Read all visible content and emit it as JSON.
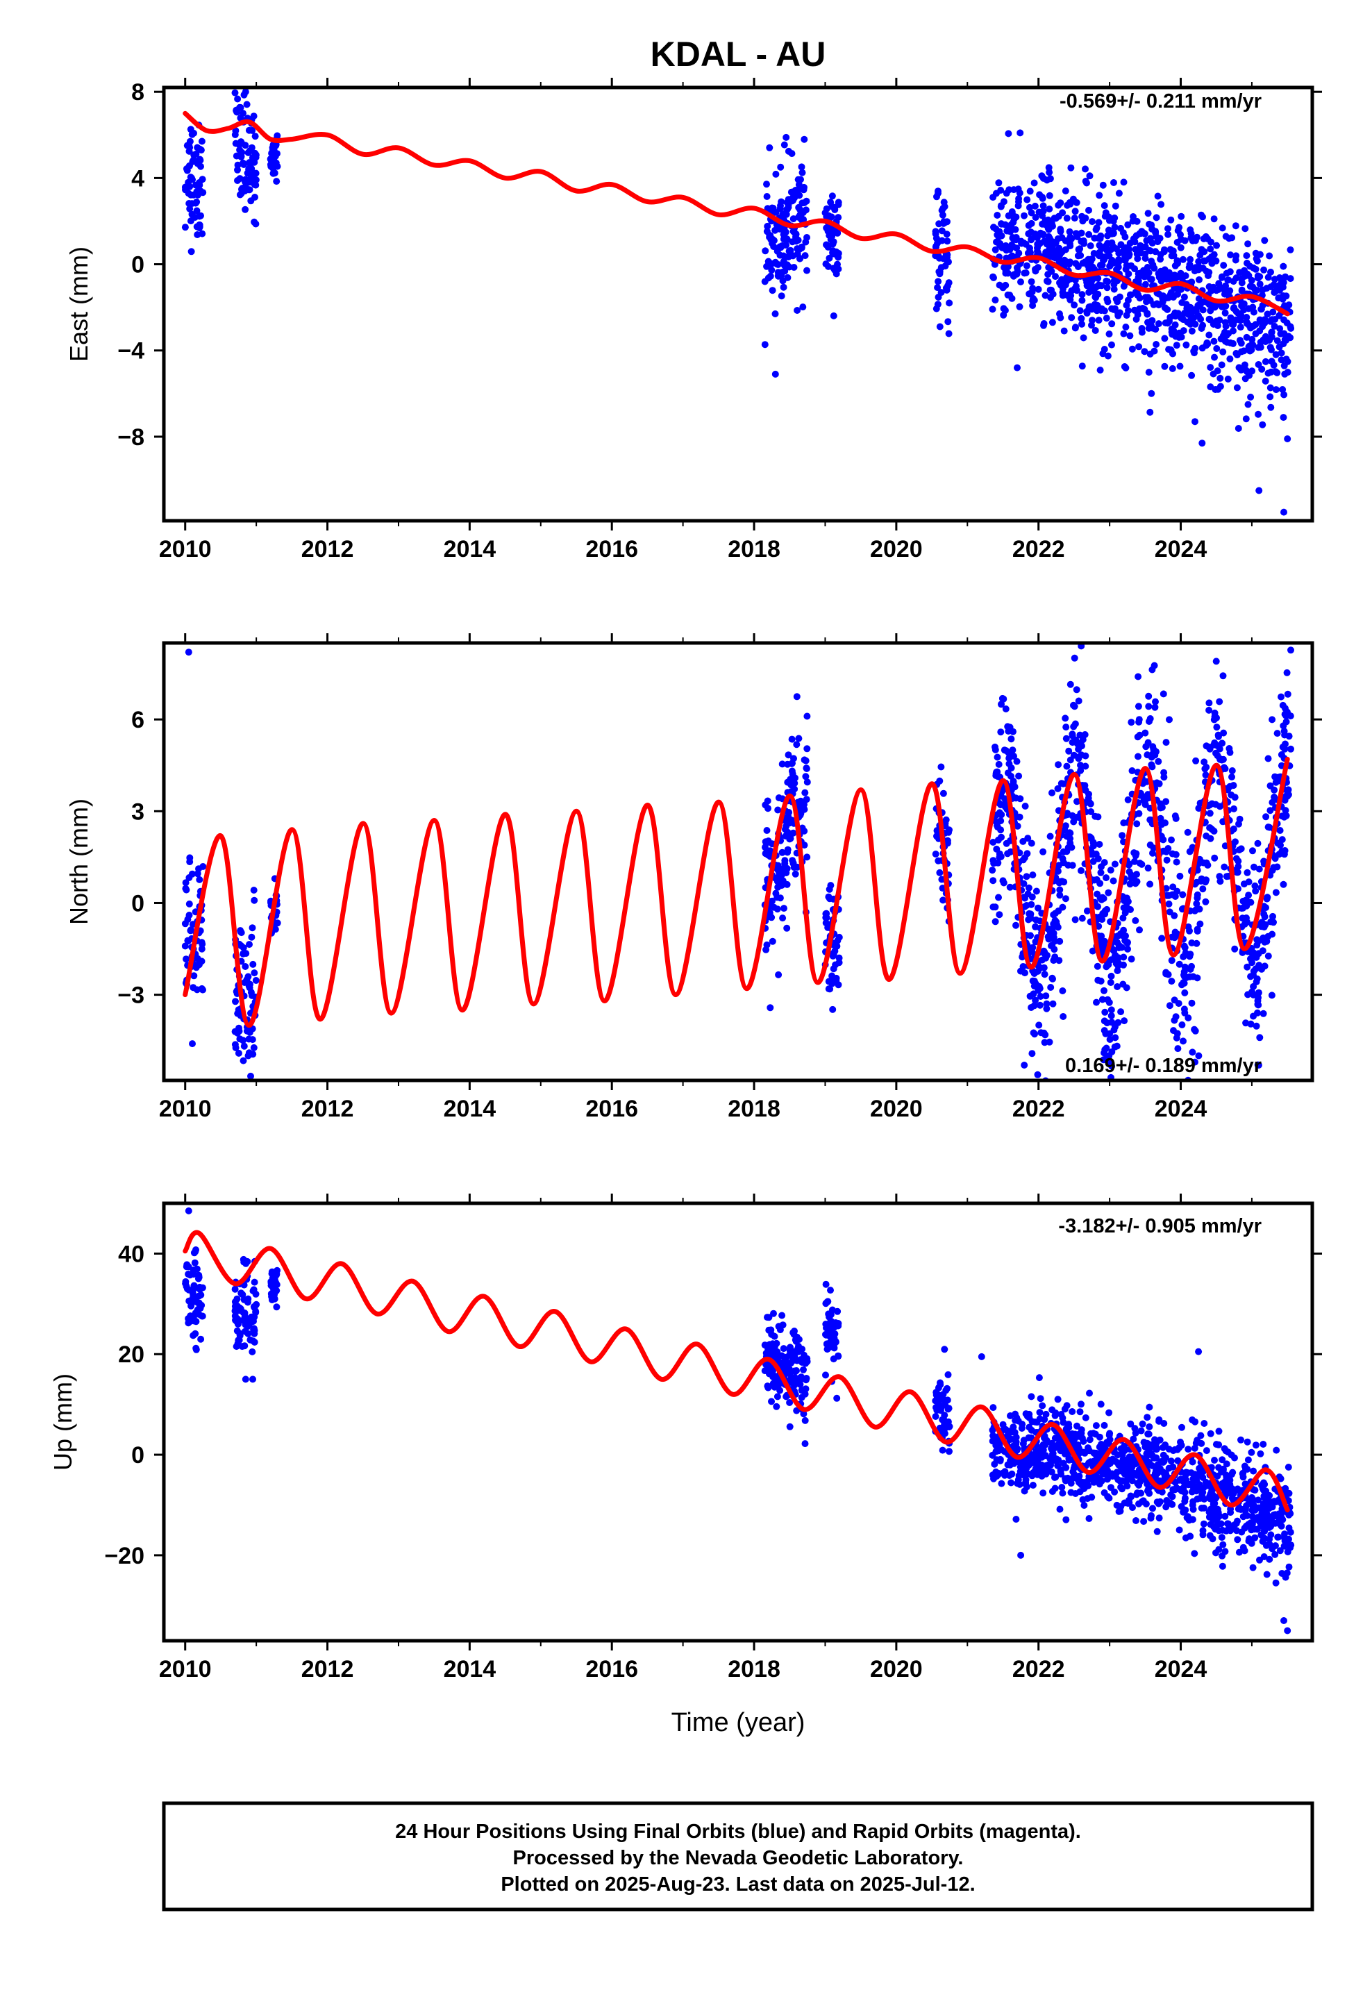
{
  "title": "KDAL - AU",
  "colors": {
    "final_orbits": "#0000ff",
    "model": "#ff0000",
    "frame": "#000000"
  },
  "chart_data": [
    {
      "type": "scatter",
      "name": "east",
      "ylabel": "East (mm)",
      "xlabel": "",
      "xlim": [
        2009.7,
        2025.85
      ],
      "ylim": [
        -11.9,
        8.2
      ],
      "xticks": [
        2010,
        2012,
        2014,
        2016,
        2018,
        2020,
        2022,
        2024
      ],
      "xtick_labels": [
        "2010",
        "2012",
        "2014",
        "2016",
        "2018",
        "2020",
        "2022",
        "2024"
      ],
      "yticks": [
        8,
        4,
        0,
        -4,
        -8
      ],
      "ytick_labels": [
        "8",
        "4",
        "0",
        "−4",
        "−8"
      ],
      "rate_text": "-0.569+/- 0.211 mm/yr",
      "rate_position": "top-right",
      "model_curve": {
        "x": [
          2010.0,
          2010.3,
          2010.6,
          2010.9,
          2011.2,
          2011.5,
          2012.0,
          2012.5,
          2013.0,
          2013.5,
          2014.0,
          2014.5,
          2015.0,
          2015.5,
          2016.0,
          2016.5,
          2017.0,
          2017.5,
          2018.0,
          2018.5,
          2019.0,
          2019.5,
          2020.0,
          2020.5,
          2021.0,
          2021.5,
          2022.0,
          2022.5,
          2023.0,
          2023.5,
          2024.0,
          2024.5,
          2025.0,
          2025.5
        ],
        "y": [
          7.0,
          6.2,
          6.3,
          6.6,
          5.8,
          5.8,
          6.0,
          5.1,
          5.4,
          4.6,
          4.8,
          4.0,
          4.3,
          3.4,
          3.7,
          2.9,
          3.1,
          2.3,
          2.6,
          1.8,
          2.0,
          1.2,
          1.4,
          0.6,
          0.8,
          0.1,
          0.3,
          -0.5,
          -0.4,
          -1.2,
          -0.9,
          -1.7,
          -1.5,
          -2.3
        ]
      },
      "observations": {
        "segments": [
          {
            "x": [
              2010.0,
              2010.25
            ],
            "center": [
              4.0,
              3.9
            ],
            "spread": 1.4
          },
          {
            "x": [
              2010.7,
              2011.0
            ],
            "center": [
              5.2,
              4.8
            ],
            "spread": 1.3
          },
          {
            "x": [
              2011.2,
              2011.3
            ],
            "center": [
              5.0,
              5.0
            ],
            "spread": 0.5
          },
          {
            "x": [
              2018.15,
              2018.45
            ],
            "center": [
              1.5,
              1.2
            ],
            "spread": 1.5
          },
          {
            "x": [
              2018.45,
              2018.75
            ],
            "center": [
              1.8,
              1.6
            ],
            "spread": 1.5
          },
          {
            "x": [
              2019.0,
              2019.2
            ],
            "center": [
              1.2,
              1.0
            ],
            "spread": 1.2
          },
          {
            "x": [
              2020.55,
              2020.75
            ],
            "center": [
              0.3,
              0.1
            ],
            "spread": 1.3
          },
          {
            "x": [
              2021.35,
              2023.5
            ],
            "center": [
              1.0,
              -0.5
            ],
            "spread": 1.7
          },
          {
            "x": [
              2023.5,
              2025.55
            ],
            "center": [
              -0.8,
              -3.2
            ],
            "spread": 1.8
          }
        ],
        "outliers": [
          [
            2010.85,
            8.0
          ],
          [
            2018.3,
            -5.1
          ],
          [
            2025.45,
            -11.5
          ],
          [
            2025.1,
            -10.5
          ],
          [
            2024.3,
            -8.3
          ],
          [
            2021.7,
            -4.8
          ],
          [
            2024.2,
            -7.3
          ],
          [
            2025.5,
            -8.1
          ]
        ]
      }
    },
    {
      "type": "scatter",
      "name": "north",
      "ylabel": "North (mm)",
      "xlabel": "",
      "xlim": [
        2009.7,
        2025.85
      ],
      "ylim": [
        -5.8,
        8.5
      ],
      "xticks": [
        2010,
        2012,
        2014,
        2016,
        2018,
        2020,
        2022,
        2024
      ],
      "xtick_labels": [
        "2010",
        "2012",
        "2014",
        "2016",
        "2018",
        "2020",
        "2022",
        "2024"
      ],
      "yticks": [
        6,
        3,
        0,
        -3
      ],
      "ytick_labels": [
        "6",
        "3",
        "0",
        "−3"
      ],
      "rate_text": "0.169+/- 0.189 mm/yr",
      "rate_position": "bottom-right",
      "model_curve": {
        "x": [
          2010.0,
          2010.5,
          2010.9,
          2011.5,
          2011.9,
          2012.5,
          2012.9,
          2013.5,
          2013.9,
          2014.5,
          2014.9,
          2015.5,
          2015.9,
          2016.5,
          2016.9,
          2017.5,
          2017.9,
          2018.5,
          2018.9,
          2019.5,
          2019.9,
          2020.5,
          2020.9,
          2021.5,
          2021.9,
          2022.5,
          2022.9,
          2023.5,
          2023.9,
          2024.5,
          2024.9,
          2025.5
        ],
        "y": [
          -3.0,
          2.2,
          -4.0,
          2.4,
          -3.8,
          2.6,
          -3.6,
          2.7,
          -3.5,
          2.9,
          -3.3,
          3.0,
          -3.2,
          3.2,
          -3.0,
          3.3,
          -2.8,
          3.5,
          -2.6,
          3.7,
          -2.5,
          3.9,
          -2.3,
          4.0,
          -2.1,
          4.2,
          -1.9,
          4.4,
          -1.7,
          4.5,
          -1.5,
          4.7
        ]
      },
      "observations": {
        "segments": [
          {
            "x": [
              2010.0,
              2010.25
            ],
            "center": [
              -1.0,
              -1.4
            ],
            "spread": 1.3
          },
          {
            "x": [
              2010.7,
              2011.0
            ],
            "center": [
              -2.6,
              -3.0
            ],
            "spread": 1.3
          },
          {
            "x": [
              2011.2,
              2011.3
            ],
            "center": [
              -0.5,
              -0.6
            ],
            "spread": 0.5
          },
          {
            "x": [
              2018.15,
              2018.45
            ],
            "center": [
              0.3,
              1.2
            ],
            "spread": 1.6
          },
          {
            "x": [
              2018.45,
              2018.75
            ],
            "center": [
              2.8,
              3.2
            ],
            "spread": 1.5
          },
          {
            "x": [
              2019.0,
              2019.2
            ],
            "center": [
              -1.3,
              -1.5
            ],
            "spread": 1.0
          },
          {
            "x": [
              2020.55,
              2020.75
            ],
            "center": [
              2.2,
              1.5
            ],
            "spread": 1.2
          },
          {
            "x": [
              2021.35,
              2025.55
            ],
            "center": [
              0.5,
              1.5
            ],
            "spread": 1.7,
            "seasonal_amplitude": 3.2
          }
        ],
        "outliers": [
          [
            2010.05,
            8.2
          ],
          [
            2022.6,
            8.4
          ],
          [
            2024.5,
            7.9
          ],
          [
            2023.4,
            7.4
          ],
          [
            2021.8,
            -5.3
          ],
          [
            2024.2,
            -5.2
          ],
          [
            2010.1,
            -4.6
          ],
          [
            2010.9,
            -4.9
          ]
        ]
      }
    },
    {
      "type": "scatter",
      "name": "up",
      "ylabel": "Up (mm)",
      "xlabel": "Time (year)",
      "xlim": [
        2009.7,
        2025.85
      ],
      "ylim": [
        -37,
        50
      ],
      "xticks": [
        2010,
        2012,
        2014,
        2016,
        2018,
        2020,
        2022,
        2024
      ],
      "xtick_labels": [
        "2010",
        "2012",
        "2014",
        "2016",
        "2018",
        "2020",
        "2022",
        "2024"
      ],
      "yticks": [
        40,
        20,
        0,
        -20
      ],
      "ytick_labels": [
        "40",
        "20",
        "0",
        "−20"
      ],
      "rate_text": "-3.182+/- 0.905 mm/yr",
      "rate_position": "top-right",
      "model_curve": {
        "x": [
          2010.0,
          2010.2,
          2010.7,
          2011.2,
          2011.7,
          2012.2,
          2012.7,
          2013.2,
          2013.7,
          2014.2,
          2014.7,
          2015.2,
          2015.7,
          2016.2,
          2016.7,
          2017.2,
          2017.7,
          2018.2,
          2018.7,
          2019.2,
          2019.7,
          2020.2,
          2020.7,
          2021.2,
          2021.7,
          2022.2,
          2022.7,
          2023.2,
          2023.7,
          2024.2,
          2024.7,
          2025.2,
          2025.5
        ],
        "y": [
          40.5,
          44.0,
          34.0,
          41.0,
          31.0,
          38.0,
          28.0,
          34.5,
          24.5,
          31.5,
          21.5,
          28.5,
          18.5,
          25.0,
          15.0,
          22.0,
          12.0,
          19.0,
          9.0,
          15.5,
          5.5,
          12.5,
          2.5,
          9.5,
          -0.5,
          6.0,
          -3.5,
          3.0,
          -6.5,
          0.0,
          -10.0,
          -3.0,
          -11.0
        ]
      },
      "observations": {
        "segments": [
          {
            "x": [
              2010.0,
              2010.25
            ],
            "center": [
              32.0,
              30.0
            ],
            "spread": 4.0
          },
          {
            "x": [
              2010.7,
              2011.0
            ],
            "center": [
              28.0,
              29.0
            ],
            "spread": 4.5
          },
          {
            "x": [
              2011.2,
              2011.3
            ],
            "center": [
              33.0,
              33.0
            ],
            "spread": 2.0
          },
          {
            "x": [
              2018.15,
              2018.45
            ],
            "center": [
              20.0,
              17.0
            ],
            "spread": 4.5
          },
          {
            "x": [
              2018.45,
              2018.75
            ],
            "center": [
              17.0,
              16.0
            ],
            "spread": 4.5
          },
          {
            "x": [
              2019.0,
              2019.2
            ],
            "center": [
              25.0,
              23.0
            ],
            "spread": 4.0
          },
          {
            "x": [
              2020.55,
              2020.75
            ],
            "center": [
              9.0,
              7.0
            ],
            "spread": 3.5
          },
          {
            "x": [
              2021.35,
              2023.5
            ],
            "center": [
              2.0,
              -3.0
            ],
            "spread": 4.5
          },
          {
            "x": [
              2023.5,
              2025.55
            ],
            "center": [
              -2.0,
              -14.0
            ],
            "spread": 5.0
          }
        ],
        "outliers": [
          [
            2010.05,
            48.5
          ],
          [
            2010.85,
            15.0
          ],
          [
            2010.95,
            15.0
          ],
          [
            2021.75,
            -20.0
          ],
          [
            2025.5,
            -35.0
          ],
          [
            2021.2,
            19.5
          ],
          [
            2024.25,
            20.5
          ],
          [
            2025.45,
            -33.0
          ]
        ]
      }
    }
  ],
  "footer": {
    "line1": "24 Hour Positions Using Final Orbits (blue) and Rapid Orbits (magenta).",
    "line2": "Processed by the Nevada Geodetic Laboratory.",
    "line3": "Plotted on 2025-Aug-23. Last data on 2025-Jul-12."
  }
}
